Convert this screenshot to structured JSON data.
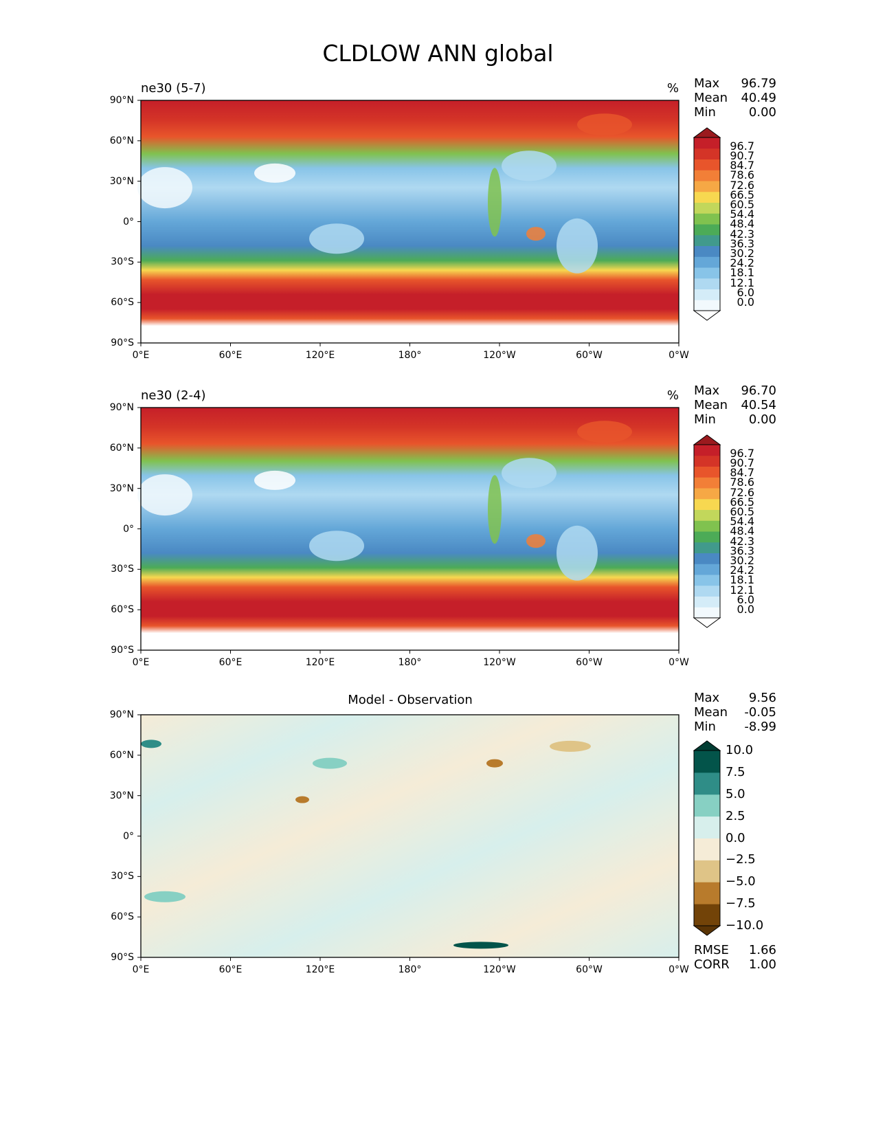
{
  "figure_title": "CLDLOW ANN global",
  "chart_data": [
    {
      "type": "heatmap",
      "panel": "test",
      "title": "ne30 (5-7)",
      "units": "%",
      "stats": {
        "max_label": "Max",
        "max": "96.79",
        "mean_label": "Mean",
        "mean": "40.49",
        "min_label": "Min",
        "min": "0.00"
      },
      "xticks": [
        "0°E",
        "60°E",
        "120°E",
        "180°",
        "120°W",
        "60°W",
        "0°W"
      ],
      "yticks": [
        "90°N",
        "60°N",
        "30°N",
        "0°",
        "30°S",
        "60°S",
        "90°S"
      ],
      "colorbar": {
        "levels": [
          "0.0",
          "6.0",
          "12.1",
          "18.1",
          "24.2",
          "30.2",
          "36.3",
          "42.3",
          "48.4",
          "54.4",
          "60.5",
          "66.5",
          "72.6",
          "78.6",
          "84.7",
          "90.7",
          "96.7"
        ],
        "colors": [
          "#f2f9fd",
          "#d4ecf8",
          "#afd9f1",
          "#88c4e8",
          "#64a7d8",
          "#4a89c3",
          "#419a8c",
          "#4cab57",
          "#80c24f",
          "#c2d75b",
          "#f7d850",
          "#f6a845",
          "#f27f37",
          "#e8552b",
          "#d43427",
          "#c51f29"
        ],
        "extend_high": "#9b1a1e",
        "extend_low": "#ffffff"
      }
    },
    {
      "type": "heatmap",
      "panel": "reference",
      "title": "ne30 (2-4)",
      "units": "%",
      "stats": {
        "max_label": "Max",
        "max": "96.70",
        "mean_label": "Mean",
        "mean": "40.54",
        "min_label": "Min",
        "min": "0.00"
      },
      "xticks": [
        "0°E",
        "60°E",
        "120°E",
        "180°",
        "120°W",
        "60°W",
        "0°W"
      ],
      "yticks": [
        "90°N",
        "60°N",
        "30°N",
        "0°",
        "30°S",
        "60°S",
        "90°S"
      ],
      "colorbar": {
        "levels": [
          "0.0",
          "6.0",
          "12.1",
          "18.1",
          "24.2",
          "30.2",
          "36.3",
          "42.3",
          "48.4",
          "54.4",
          "60.5",
          "66.5",
          "72.6",
          "78.6",
          "84.7",
          "90.7",
          "96.7"
        ],
        "colors": [
          "#f2f9fd",
          "#d4ecf8",
          "#afd9f1",
          "#88c4e8",
          "#64a7d8",
          "#4a89c3",
          "#419a8c",
          "#4cab57",
          "#80c24f",
          "#c2d75b",
          "#f7d850",
          "#f6a845",
          "#f27f37",
          "#e8552b",
          "#d43427",
          "#c51f29"
        ],
        "extend_high": "#9b1a1e",
        "extend_low": "#ffffff"
      }
    },
    {
      "type": "heatmap",
      "panel": "difference",
      "title": "Model - Observation",
      "stats": {
        "max_label": "Max",
        "max": "9.56",
        "mean_label": "Mean",
        "mean": "-0.05",
        "min_label": "Min",
        "min": "-8.99"
      },
      "metrics": {
        "rmse_label": "RMSE",
        "rmse": "1.66",
        "corr_label": "CORR",
        "corr": "1.00"
      },
      "xticks": [
        "0°E",
        "60°E",
        "120°E",
        "180°",
        "120°W",
        "60°W",
        "0°W"
      ],
      "yticks": [
        "90°N",
        "60°N",
        "30°N",
        "0°",
        "30°S",
        "60°S",
        "90°S"
      ],
      "colorbar": {
        "levels": [
          "−10.0",
          "−7.5",
          "−5.0",
          "−2.5",
          "0.0",
          "2.5",
          "5.0",
          "7.5",
          "10.0"
        ],
        "colors": [
          "#724308",
          "#b87b2c",
          "#dfc487",
          "#f5ecd7",
          "#d7efec",
          "#87d0c3",
          "#2f8d87",
          "#03544a"
        ],
        "extend_high": "#023d33",
        "extend_low": "#5a3405"
      }
    }
  ]
}
